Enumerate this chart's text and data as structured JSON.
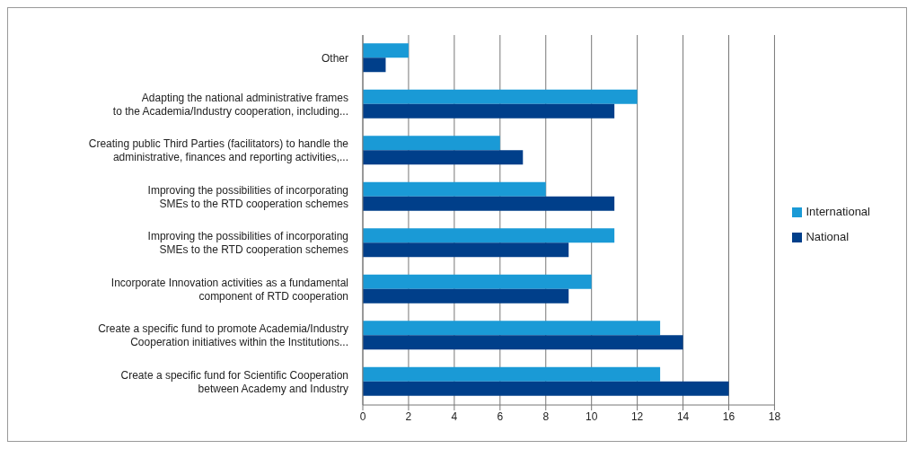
{
  "chart_data": {
    "type": "bar",
    "orientation": "horizontal",
    "categories": [
      "Other",
      "Adapting the national administrative frames\nto the Academia/Industry cooperation, including...",
      "Creating public Third Parties (facilitators) to handle the\nadministrative, finances and reporting activities,...",
      "Improving the possibilities of incorporating\nSMEs to the RTD cooperation schemes",
      "Improving the possibilities of incorporating\nSMEs to the RTD cooperation schemes",
      "Incorporate Innovation activities as a fundamental\ncomponent of RTD cooperation",
      "Create a specific fund to promote Academia/Industry\nCooperation initiatives within the Institutions...",
      "Create a specific fund for Scientific Cooperation\nbetween Academy and Industry"
    ],
    "series": [
      {
        "name": "International",
        "color": "#1a9ad6",
        "values": [
          2,
          12,
          6,
          8,
          11,
          10,
          13,
          13
        ]
      },
      {
        "name": "National",
        "color": "#003f8a",
        "values": [
          1,
          11,
          7,
          11,
          9,
          9,
          14,
          16
        ]
      }
    ],
    "xlim": [
      0,
      18
    ],
    "xticks": [
      0,
      2,
      4,
      6,
      8,
      10,
      12,
      14,
      16,
      18
    ],
    "grid": "x",
    "legend": "right"
  }
}
